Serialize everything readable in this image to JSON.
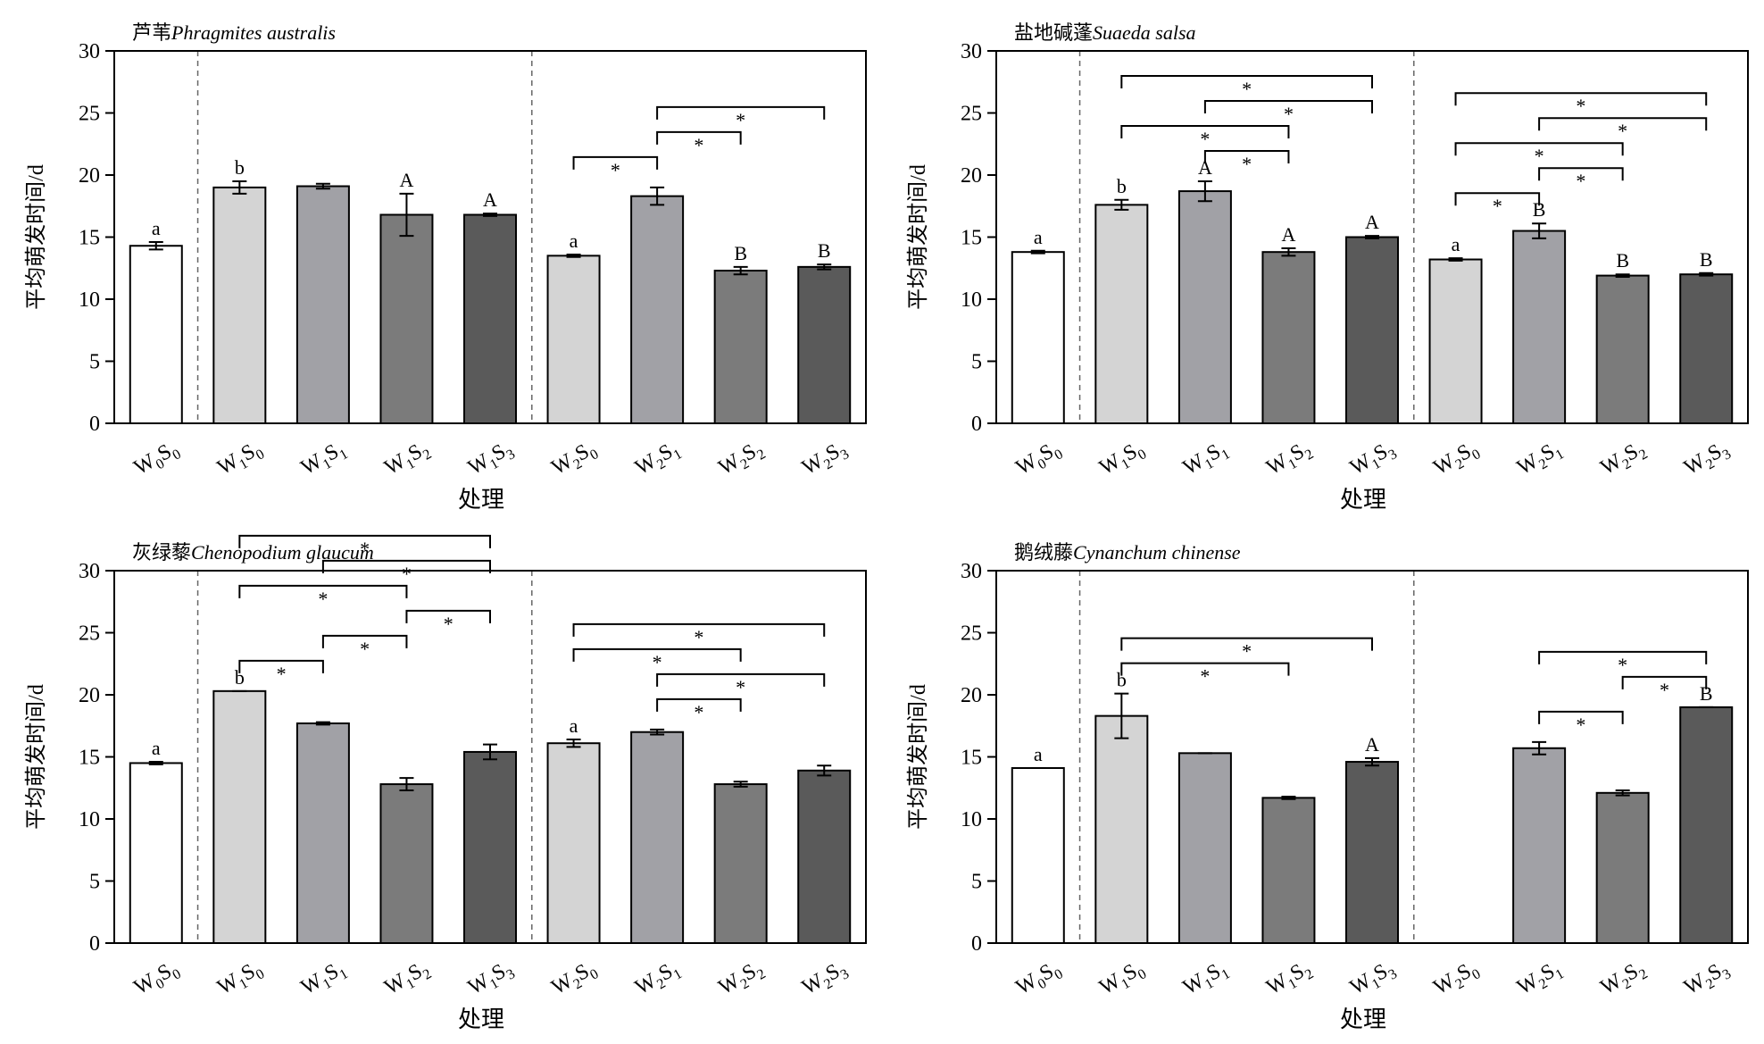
{
  "colors": {
    "W0S0": "#ffffff",
    "W1S0": "#d4d4d4",
    "W1S1": "#a1a1a6",
    "W1S2": "#7b7b7b",
    "W1S3": "#5a5a5a",
    "W2S0": "#d4d4d4",
    "W2S1": "#a1a1a6",
    "W2S2": "#7b7b7b",
    "W2S3": "#5a5a5a"
  },
  "categories": [
    {
      "main": "W",
      "sub1": "0",
      "mid": "S",
      "sub2": "0"
    },
    {
      "main": "W",
      "sub1": "1",
      "mid": "S",
      "sub2": "0"
    },
    {
      "main": "W",
      "sub1": "1",
      "mid": "S",
      "sub2": "1"
    },
    {
      "main": "W",
      "sub1": "1",
      "mid": "S",
      "sub2": "2"
    },
    {
      "main": "W",
      "sub1": "1",
      "mid": "S",
      "sub2": "3"
    },
    {
      "main": "W",
      "sub1": "2",
      "mid": "S",
      "sub2": "0"
    },
    {
      "main": "W",
      "sub1": "2",
      "mid": "S",
      "sub2": "1"
    },
    {
      "main": "W",
      "sub1": "2",
      "mid": "S",
      "sub2": "2"
    },
    {
      "main": "W",
      "sub1": "2",
      "mid": "S",
      "sub2": "3"
    }
  ],
  "chart_data": [
    {
      "type": "bar",
      "title_cn": "芦苇",
      "title_latin": "Phragmites australis",
      "xlabel": "处理",
      "ylabel": "平均萌发时间/d",
      "ylim": [
        0,
        30
      ],
      "yticks": [
        0,
        5,
        10,
        15,
        20,
        25,
        30
      ],
      "values": [
        14.3,
        19.0,
        19.1,
        16.8,
        16.8,
        13.5,
        18.3,
        12.3,
        12.6
      ],
      "errors": [
        0.3,
        0.5,
        0.2,
        1.7,
        0.1,
        0.1,
        0.7,
        0.3,
        0.2
      ],
      "letters": [
        "a",
        "b",
        "",
        "A",
        "A",
        "a",
        "",
        "B",
        "B"
      ],
      "sig_brackets": [
        {
          "from": 6,
          "to": 8,
          "label": "*"
        },
        {
          "from": 5,
          "to": 6,
          "label": "*"
        },
        {
          "from": 6,
          "to": 7,
          "label": "*"
        }
      ]
    },
    {
      "type": "bar",
      "title_cn": "盐地碱蓬",
      "title_latin": "Suaeda salsa",
      "xlabel": "处理",
      "ylabel": "平均萌发时间/d",
      "ylim": [
        0,
        30
      ],
      "yticks": [
        0,
        5,
        10,
        15,
        20,
        25,
        30
      ],
      "values": [
        13.8,
        17.6,
        18.7,
        13.8,
        15.0,
        13.2,
        15.5,
        11.9,
        12.0
      ],
      "errors": [
        0.1,
        0.4,
        0.8,
        0.3,
        0.1,
        0.1,
        0.6,
        0.1,
        0.1
      ],
      "letters": [
        "a",
        "b",
        "A",
        "A",
        "A",
        "a",
        "B",
        "B",
        "B"
      ],
      "sig_brackets": [
        {
          "from": 1,
          "to": 4,
          "label": "*"
        },
        {
          "from": 1,
          "to": 3,
          "label": "*"
        },
        {
          "from": 2,
          "to": 4,
          "label": "*"
        },
        {
          "from": 2,
          "to": 3,
          "label": "*"
        },
        {
          "from": 5,
          "to": 8,
          "label": "*"
        },
        {
          "from": 5,
          "to": 7,
          "label": "*"
        },
        {
          "from": 6,
          "to": 8,
          "label": "*"
        },
        {
          "from": 5,
          "to": 6,
          "label": "*"
        },
        {
          "from": 6,
          "to": 7,
          "label": "*"
        }
      ]
    },
    {
      "type": "bar",
      "title_cn": "灰绿藜",
      "title_latin": "Chenopodium glaucum",
      "xlabel": "处理",
      "ylabel": "平均萌发时间/d",
      "ylim": [
        0,
        30
      ],
      "yticks": [
        0,
        5,
        10,
        15,
        20,
        25,
        30
      ],
      "values": [
        14.5,
        20.3,
        17.7,
        12.8,
        15.4,
        16.1,
        17.0,
        12.8,
        13.9
      ],
      "errors": [
        0.1,
        0.0,
        0.1,
        0.5,
        0.6,
        0.3,
        0.2,
        0.2,
        0.4
      ],
      "letters": [
        "a",
        "b",
        "",
        "",
        "",
        "a",
        "",
        "",
        ""
      ],
      "sig_brackets": [
        {
          "from": 1,
          "to": 4,
          "label": "*"
        },
        {
          "from": 1,
          "to": 3,
          "label": "*"
        },
        {
          "from": 1,
          "to": 2,
          "label": "*"
        },
        {
          "from": 2,
          "to": 4,
          "label": "*"
        },
        {
          "from": 2,
          "to": 3,
          "label": "*"
        },
        {
          "from": 3,
          "to": 4,
          "label": "*"
        },
        {
          "from": 5,
          "to": 8,
          "label": "*"
        },
        {
          "from": 6,
          "to": 8,
          "label": "*"
        },
        {
          "from": 5,
          "to": 7,
          "label": "*"
        },
        {
          "from": 6,
          "to": 7,
          "label": "*"
        }
      ]
    },
    {
      "type": "bar",
      "title_cn": "鹅绒藤",
      "title_latin": "Cynanchum chinense",
      "xlabel": "处理",
      "ylabel": "平均萌发时间/d",
      "ylim": [
        0,
        30
      ],
      "yticks": [
        0,
        5,
        10,
        15,
        20,
        25,
        30
      ],
      "values": [
        14.1,
        18.3,
        15.3,
        11.7,
        14.6,
        0,
        15.7,
        12.1,
        19.0
      ],
      "errors": [
        0,
        1.8,
        0,
        0.1,
        0.3,
        0,
        0.5,
        0.2,
        0
      ],
      "letters": [
        "a",
        "b",
        "",
        "",
        "A",
        "",
        "",
        "",
        "B"
      ],
      "sig_brackets": [
        {
          "from": 1,
          "to": 4,
          "label": "*"
        },
        {
          "from": 1,
          "to": 3,
          "label": "*"
        },
        {
          "from": 6,
          "to": 8,
          "label": "*"
        },
        {
          "from": 6,
          "to": 7,
          "label": "*"
        },
        {
          "from": 7,
          "to": 8,
          "label": "*"
        }
      ]
    }
  ]
}
